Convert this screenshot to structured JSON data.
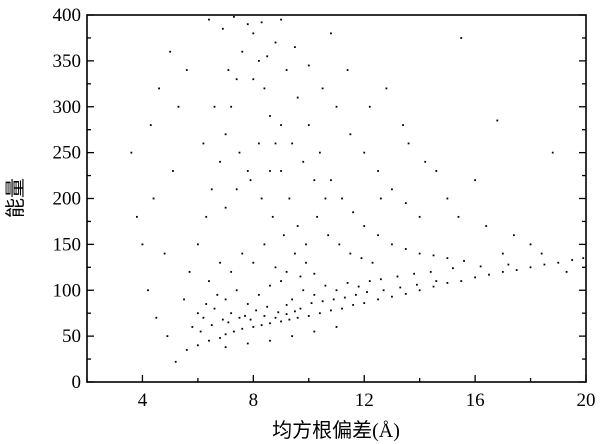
{
  "chart_data": {
    "type": "scatter",
    "title": "",
    "xlabel": "均方根偏差(Å)",
    "ylabel": "能量",
    "xlim": [
      2,
      20
    ],
    "ylim": [
      0,
      400
    ],
    "xticks": [
      4,
      8,
      12,
      16,
      20
    ],
    "xtick_labels": [
      "4",
      "8",
      "12",
      "16",
      "20"
    ],
    "yticks": [
      0,
      50,
      100,
      150,
      200,
      250,
      300,
      350,
      400
    ],
    "ytick_labels": [
      "0",
      "50",
      "100",
      "150",
      "200",
      "250",
      "300",
      "350",
      "400"
    ],
    "grid": false,
    "legend": "none",
    "marker_color": "#000000",
    "points": [
      [
        5.2,
        22
      ],
      [
        5.6,
        35
      ],
      [
        6.0,
        40
      ],
      [
        6.4,
        45
      ],
      [
        6.8,
        48
      ],
      [
        7.0,
        52
      ],
      [
        7.3,
        55
      ],
      [
        7.6,
        58
      ],
      [
        8.0,
        60
      ],
      [
        8.3,
        62
      ],
      [
        8.6,
        64
      ],
      [
        9.0,
        66
      ],
      [
        9.3,
        68
      ],
      [
        9.6,
        70
      ],
      [
        10.0,
        72
      ],
      [
        10.4,
        75
      ],
      [
        10.8,
        78
      ],
      [
        11.2,
        80
      ],
      [
        11.6,
        84
      ],
      [
        12.0,
        86
      ],
      [
        12.5,
        90
      ],
      [
        13.0,
        93
      ],
      [
        13.5,
        96
      ],
      [
        14.0,
        100
      ],
      [
        14.5,
        104
      ],
      [
        15.0,
        108
      ],
      [
        15.5,
        110
      ],
      [
        16.0,
        114
      ],
      [
        16.5,
        117
      ],
      [
        17.0,
        120
      ],
      [
        17.5,
        122
      ],
      [
        18.0,
        125
      ],
      [
        18.5,
        128
      ],
      [
        19.0,
        130
      ],
      [
        19.5,
        133
      ],
      [
        19.9,
        135
      ],
      [
        5.8,
        60
      ],
      [
        6.2,
        70
      ],
      [
        6.6,
        80
      ],
      [
        7.0,
        90
      ],
      [
        7.4,
        100
      ],
      [
        7.8,
        85
      ],
      [
        8.2,
        95
      ],
      [
        8.6,
        105
      ],
      [
        9.0,
        110
      ],
      [
        9.4,
        90
      ],
      [
        9.8,
        100
      ],
      [
        10.2,
        95
      ],
      [
        10.6,
        105
      ],
      [
        11.0,
        100
      ],
      [
        11.4,
        108
      ],
      [
        11.8,
        104
      ],
      [
        12.2,
        110
      ],
      [
        12.6,
        112
      ],
      [
        13.2,
        115
      ],
      [
        13.8,
        118
      ],
      [
        14.4,
        120
      ],
      [
        15.2,
        124
      ],
      [
        16.2,
        126
      ],
      [
        17.2,
        128
      ],
      [
        6.1,
        55
      ],
      [
        6.5,
        62
      ],
      [
        6.9,
        68
      ],
      [
        7.2,
        75
      ],
      [
        7.7,
        72
      ],
      [
        8.1,
        78
      ],
      [
        8.5,
        82
      ],
      [
        8.9,
        76
      ],
      [
        9.2,
        84
      ],
      [
        9.7,
        80
      ],
      [
        10.1,
        86
      ],
      [
        10.5,
        88
      ],
      [
        10.9,
        90
      ],
      [
        11.3,
        92
      ],
      [
        11.7,
        95
      ],
      [
        12.1,
        98
      ],
      [
        12.7,
        100
      ],
      [
        13.3,
        103
      ],
      [
        13.9,
        106
      ],
      [
        14.6,
        110
      ],
      [
        5.5,
        90
      ],
      [
        5.7,
        120
      ],
      [
        6.0,
        150
      ],
      [
        6.3,
        180
      ],
      [
        6.5,
        210
      ],
      [
        6.8,
        240
      ],
      [
        7.0,
        270
      ],
      [
        7.2,
        300
      ],
      [
        7.4,
        330
      ],
      [
        7.6,
        360
      ],
      [
        7.8,
        390
      ],
      [
        8.0,
        380
      ],
      [
        8.2,
        350
      ],
      [
        8.4,
        320
      ],
      [
        8.6,
        290
      ],
      [
        8.8,
        260
      ],
      [
        9.0,
        230
      ],
      [
        9.3,
        200
      ],
      [
        9.6,
        170
      ],
      [
        9.9,
        150
      ],
      [
        6.4,
        395
      ],
      [
        6.9,
        385
      ],
      [
        7.3,
        398
      ],
      [
        8.3,
        392
      ],
      [
        8.8,
        370
      ],
      [
        9.2,
        340
      ],
      [
        9.6,
        310
      ],
      [
        10.0,
        280
      ],
      [
        10.4,
        250
      ],
      [
        10.8,
        220
      ],
      [
        11.2,
        200
      ],
      [
        11.6,
        185
      ],
      [
        12.0,
        170
      ],
      [
        12.5,
        160
      ],
      [
        13.0,
        150
      ],
      [
        13.5,
        145
      ],
      [
        14.0,
        140
      ],
      [
        14.5,
        138
      ],
      [
        15.0,
        135
      ],
      [
        15.6,
        132
      ],
      [
        6.2,
        260
      ],
      [
        6.6,
        300
      ],
      [
        7.1,
        340
      ],
      [
        7.5,
        250
      ],
      [
        7.9,
        220
      ],
      [
        8.3,
        200
      ],
      [
        8.7,
        180
      ],
      [
        9.1,
        160
      ],
      [
        9.5,
        140
      ],
      [
        9.9,
        130
      ],
      [
        10.3,
        180
      ],
      [
        10.7,
        160
      ],
      [
        11.1,
        150
      ],
      [
        11.5,
        140
      ],
      [
        11.9,
        135
      ],
      [
        12.3,
        130
      ],
      [
        10.5,
        320
      ],
      [
        11.0,
        300
      ],
      [
        11.5,
        270
      ],
      [
        12.0,
        250
      ],
      [
        12.5,
        230
      ],
      [
        13.0,
        210
      ],
      [
        13.5,
        195
      ],
      [
        14.0,
        180
      ],
      [
        12.8,
        320
      ],
      [
        13.4,
        280
      ],
      [
        14.2,
        240
      ],
      [
        15.0,
        200
      ],
      [
        15.5,
        375
      ],
      [
        16.0,
        220
      ],
      [
        16.8,
        285
      ],
      [
        17.4,
        160
      ],
      [
        18.0,
        150
      ],
      [
        18.4,
        140
      ],
      [
        18.8,
        250
      ],
      [
        19.3,
        120
      ],
      [
        4.9,
        50
      ],
      [
        4.5,
        70
      ],
      [
        4.2,
        100
      ],
      [
        4.0,
        150
      ],
      [
        3.8,
        180
      ],
      [
        3.6,
        250
      ],
      [
        4.3,
        280
      ],
      [
        4.6,
        320
      ],
      [
        5.0,
        360
      ],
      [
        4.4,
        200
      ],
      [
        4.8,
        140
      ],
      [
        5.1,
        230
      ],
      [
        5.3,
        300
      ],
      [
        5.6,
        340
      ],
      [
        6.0,
        75
      ],
      [
        6.3,
        85
      ],
      [
        6.7,
        95
      ],
      [
        7.1,
        65
      ],
      [
        7.5,
        70
      ],
      [
        7.9,
        68
      ],
      [
        8.4,
        72
      ],
      [
        8.8,
        70
      ],
      [
        9.2,
        74
      ],
      [
        9.5,
        77
      ],
      [
        6.4,
        110
      ],
      [
        6.8,
        130
      ],
      [
        7.2,
        120
      ],
      [
        7.6,
        140
      ],
      [
        8.0,
        130
      ],
      [
        8.4,
        150
      ],
      [
        8.8,
        125
      ],
      [
        9.2,
        120
      ],
      [
        9.7,
        115
      ],
      [
        10.2,
        118
      ],
      [
        7.0,
        190
      ],
      [
        7.4,
        210
      ],
      [
        7.8,
        230
      ],
      [
        8.2,
        260
      ],
      [
        8.6,
        230
      ],
      [
        9.0,
        280
      ],
      [
        9.4,
        260
      ],
      [
        9.8,
        240
      ],
      [
        10.2,
        220
      ],
      [
        10.6,
        200
      ],
      [
        8.0,
        330
      ],
      [
        8.5,
        355
      ],
      [
        9.0,
        395
      ],
      [
        9.5,
        365
      ],
      [
        10.0,
        345
      ],
      [
        10.8,
        380
      ],
      [
        11.4,
        340
      ],
      [
        12.2,
        300
      ],
      [
        12.6,
        200
      ],
      [
        13.6,
        260
      ],
      [
        14.6,
        230
      ],
      [
        15.4,
        180
      ],
      [
        16.4,
        170
      ],
      [
        17.0,
        140
      ],
      [
        11.0,
        60
      ],
      [
        10.2,
        55
      ],
      [
        9.4,
        50
      ],
      [
        8.6,
        45
      ],
      [
        7.8,
        42
      ],
      [
        7.0,
        38
      ]
    ]
  }
}
